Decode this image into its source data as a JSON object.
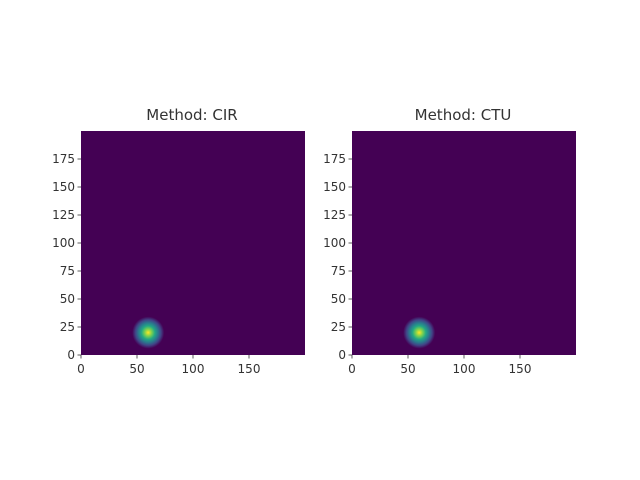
{
  "chart_data": [
    {
      "type": "heatmap",
      "title": "Method: CIR",
      "xlim": [
        0,
        200
      ],
      "ylim": [
        0,
        200
      ],
      "xticks": [
        0,
        50,
        100,
        150
      ],
      "yticks": [
        0,
        25,
        50,
        75,
        100,
        125,
        150,
        175
      ],
      "colormap": "viridis",
      "grid": false,
      "background_value_color": "#440154",
      "peak": {
        "x": 60,
        "y": 20
      }
    },
    {
      "type": "heatmap",
      "title": "Method: CTU",
      "xlim": [
        0,
        200
      ],
      "ylim": [
        0,
        200
      ],
      "xticks": [
        0,
        50,
        100,
        150
      ],
      "yticks": [
        0,
        25,
        50,
        75,
        100,
        125,
        150,
        175
      ],
      "colormap": "viridis",
      "grid": false,
      "background_value_color": "#440154",
      "peak": {
        "x": 60,
        "y": 20
      }
    }
  ]
}
